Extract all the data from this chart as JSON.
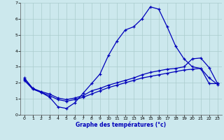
{
  "xlabel": "Graphe des températures (°c)",
  "background_color": "#cce8ed",
  "line_color": "#0000bb",
  "grid_color": "#aacccc",
  "axis_color": "#555555",
  "xlim": [
    -0.5,
    23.5
  ],
  "ylim": [
    0,
    7
  ],
  "xticks": [
    0,
    1,
    2,
    3,
    4,
    5,
    6,
    7,
    8,
    9,
    10,
    11,
    12,
    13,
    14,
    15,
    16,
    17,
    18,
    19,
    20,
    21,
    22,
    23
  ],
  "yticks": [
    0,
    1,
    2,
    3,
    4,
    5,
    6,
    7
  ],
  "line1_x": [
    0,
    1,
    2,
    3,
    4,
    5,
    6,
    7,
    8,
    9,
    10,
    11,
    12,
    13,
    14,
    15,
    16,
    17,
    18,
    19,
    20,
    21,
    22,
    23
  ],
  "line1_y": [
    2.3,
    1.65,
    1.4,
    1.1,
    0.5,
    0.4,
    0.75,
    1.35,
    1.95,
    2.55,
    3.7,
    4.6,
    5.3,
    5.5,
    6.0,
    6.75,
    6.6,
    5.5,
    4.3,
    3.5,
    3.0,
    2.9,
    1.95,
    1.95
  ],
  "line2_x": [
    0,
    1,
    2,
    3,
    4,
    5,
    6,
    7,
    8,
    9,
    10,
    11,
    12,
    13,
    14,
    15,
    16,
    17,
    18,
    19,
    20,
    21,
    22,
    23
  ],
  "line2_y": [
    2.25,
    1.65,
    1.45,
    1.3,
    1.05,
    0.95,
    1.05,
    1.2,
    1.5,
    1.65,
    1.85,
    2.0,
    2.15,
    2.3,
    2.5,
    2.65,
    2.75,
    2.85,
    2.9,
    3.0,
    3.5,
    3.55,
    2.95,
    1.95
  ],
  "line3_x": [
    0,
    1,
    2,
    3,
    4,
    5,
    6,
    7,
    8,
    9,
    10,
    11,
    12,
    13,
    14,
    15,
    16,
    17,
    18,
    19,
    20,
    21,
    22,
    23
  ],
  "line3_y": [
    2.15,
    1.6,
    1.4,
    1.2,
    0.95,
    0.85,
    0.95,
    1.1,
    1.3,
    1.5,
    1.7,
    1.85,
    2.0,
    2.15,
    2.3,
    2.4,
    2.5,
    2.6,
    2.7,
    2.8,
    2.85,
    2.9,
    2.3,
    1.9
  ]
}
